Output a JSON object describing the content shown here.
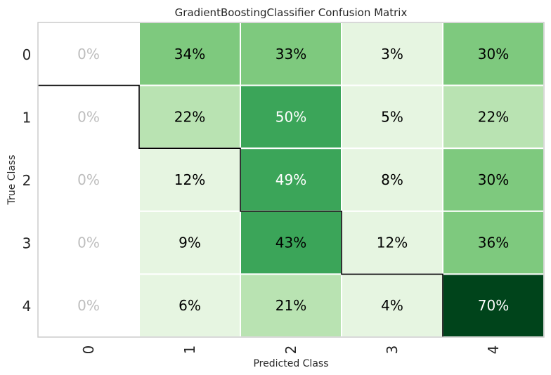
{
  "chart_data": {
    "type": "heatmap",
    "title": "GradientBoostingClassifier Confusion Matrix",
    "xlabel": "Predicted Class",
    "ylabel": "True Class",
    "x_categories": [
      "0",
      "1",
      "2",
      "3",
      "4"
    ],
    "y_categories": [
      "0",
      "1",
      "2",
      "3",
      "4"
    ],
    "values": [
      [
        0,
        34,
        33,
        3,
        30
      ],
      [
        0,
        22,
        50,
        5,
        22
      ],
      [
        0,
        12,
        49,
        8,
        30
      ],
      [
        0,
        9,
        43,
        12,
        36
      ],
      [
        0,
        6,
        21,
        4,
        70
      ]
    ],
    "value_suffix": "%",
    "colormap": "greens",
    "zero_cell_color": "#ffffff",
    "zero_text_color": "#bdbdbd",
    "light_text_color": "#ffffff",
    "dark_text_color": "#000000",
    "grid": true
  }
}
